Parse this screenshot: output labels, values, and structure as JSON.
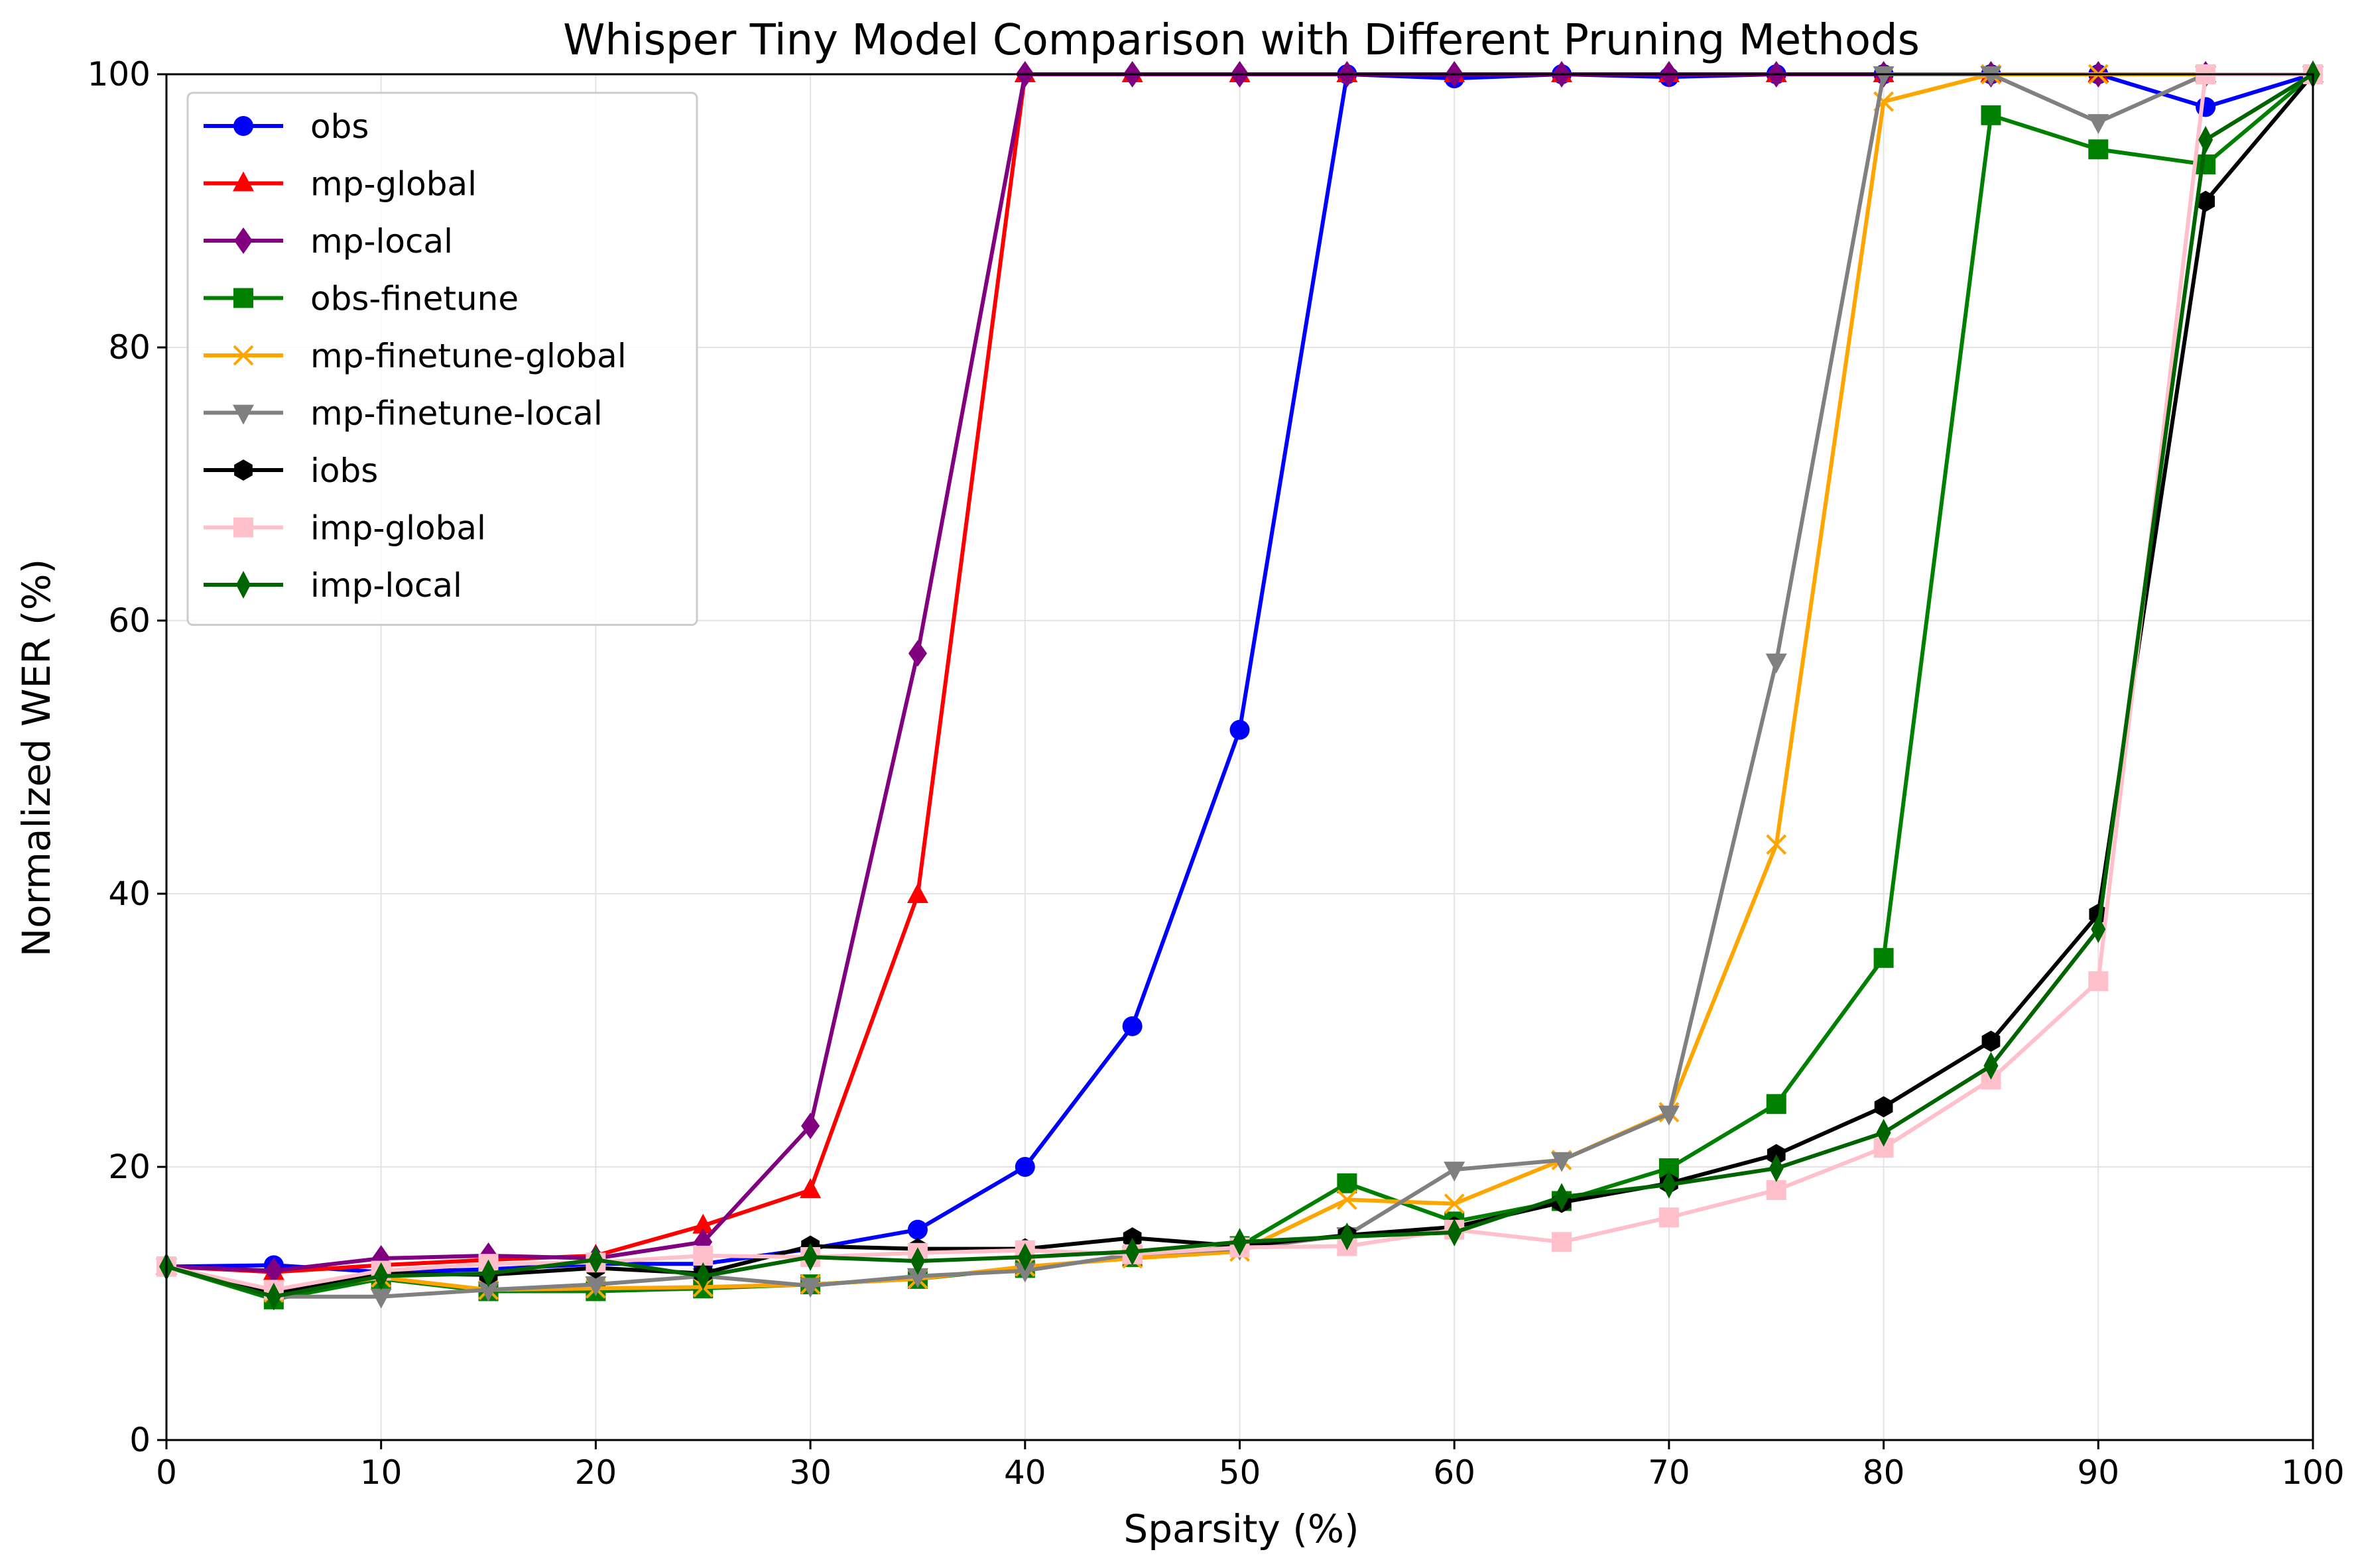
{
  "chart_data": {
    "type": "line",
    "title": "Whisper Tiny Model Comparison with Different Pruning Methods",
    "xlabel": "Sparsity (%)",
    "ylabel": "Normalized WER (%)",
    "xlim": [
      0,
      100
    ],
    "ylim": [
      0,
      100
    ],
    "xticks": [
      0,
      10,
      20,
      30,
      40,
      50,
      60,
      70,
      80,
      90,
      100
    ],
    "yticks": [
      0,
      20,
      40,
      60,
      80,
      100
    ],
    "grid": true,
    "legend_position": "top-left",
    "x": [
      0,
      5,
      10,
      15,
      20,
      25,
      30,
      35,
      40,
      45,
      50,
      55,
      60,
      65,
      70,
      75,
      80,
      85,
      90,
      95,
      100
    ],
    "series": [
      {
        "name": "obs",
        "color": "#0000ff",
        "marker": "circle",
        "values": [
          12.7,
          12.8,
          12.3,
          12.5,
          12.9,
          12.9,
          14.0,
          15.4,
          20.0,
          30.3,
          52.0,
          100,
          99.7,
          100,
          99.8,
          100,
          100,
          100,
          100,
          97.6,
          100
        ]
      },
      {
        "name": "mp-global",
        "color": "#ff0000",
        "marker": "triangle-up",
        "values": [
          12.7,
          12.3,
          12.8,
          13.2,
          13.5,
          15.7,
          18.3,
          39.9,
          100,
          100,
          100,
          100,
          100,
          100,
          100,
          100,
          100,
          100,
          100,
          100,
          100
        ]
      },
      {
        "name": "mp-local",
        "color": "#800080",
        "marker": "diamond",
        "values": [
          12.7,
          12.4,
          13.3,
          13.5,
          13.3,
          14.5,
          23.0,
          57.6,
          100,
          100,
          100,
          100,
          100,
          100,
          100,
          100,
          100,
          100,
          100,
          100,
          100
        ]
      },
      {
        "name": "obs-finetune",
        "color": "#008000",
        "marker": "square",
        "values": [
          12.7,
          10.3,
          11.8,
          10.9,
          10.9,
          11.1,
          11.4,
          11.8,
          12.6,
          13.4,
          14.2,
          18.8,
          16.0,
          17.5,
          19.9,
          24.6,
          35.3,
          97.0,
          94.5,
          93.4,
          100
        ]
      },
      {
        "name": "mp-finetune-global",
        "color": "#ffa500",
        "marker": "x",
        "values": [
          12.7,
          10.8,
          11.9,
          11.0,
          11.1,
          11.2,
          11.4,
          11.8,
          12.7,
          13.3,
          13.8,
          17.6,
          17.3,
          20.5,
          24.0,
          43.6,
          98.0,
          100,
          100,
          100,
          100
        ]
      },
      {
        "name": "mp-finetune-local",
        "color": "#808080",
        "marker": "triangle-down",
        "values": [
          12.7,
          10.5,
          10.5,
          11.0,
          11.4,
          12.0,
          11.3,
          12.0,
          12.4,
          13.6,
          14.0,
          15.0,
          19.8,
          20.5,
          23.9,
          57.0,
          100,
          100,
          96.5,
          100,
          100
        ]
      },
      {
        "name": "iobs",
        "color": "#000000",
        "marker": "hexagon",
        "values": [
          12.7,
          10.8,
          12.2,
          12.1,
          12.6,
          12.2,
          14.2,
          14.0,
          14.0,
          14.8,
          14.2,
          15.0,
          15.6,
          17.4,
          18.8,
          20.9,
          24.4,
          29.2,
          38.5,
          90.7,
          100
        ]
      },
      {
        "name": "imp-global",
        "color": "#ffc0cb",
        "marker": "square",
        "values": [
          12.7,
          11.0,
          12.4,
          12.9,
          13.0,
          13.5,
          13.4,
          13.7,
          13.9,
          13.6,
          14.1,
          14.2,
          15.4,
          14.5,
          16.3,
          18.3,
          21.4,
          26.4,
          33.6,
          100,
          100
        ]
      },
      {
        "name": "imp-local",
        "color": "#006400",
        "marker": "thin-diamond",
        "values": [
          12.7,
          10.5,
          12.0,
          12.2,
          13.2,
          12.0,
          13.4,
          13.1,
          13.4,
          13.8,
          14.5,
          14.9,
          15.2,
          17.8,
          18.7,
          19.9,
          22.5,
          27.4,
          37.4,
          95.2,
          100
        ]
      }
    ]
  }
}
